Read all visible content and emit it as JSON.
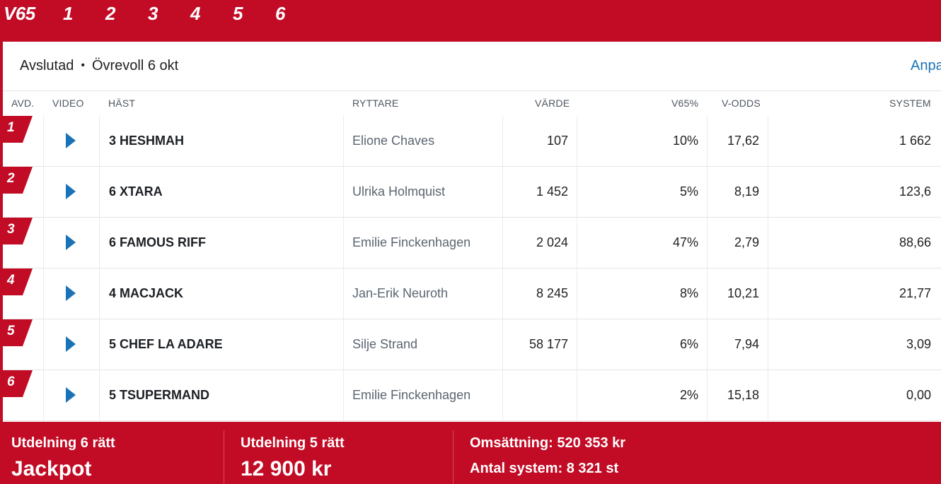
{
  "header": {
    "game": "V65",
    "legs": [
      "1",
      "2",
      "3",
      "4",
      "5",
      "6"
    ]
  },
  "status": {
    "state": "Avslutad",
    "separator": "•",
    "track_date": "Övrevoll 6 okt",
    "adjust_link": "Anpa"
  },
  "table": {
    "columns": {
      "avd": "AVD.",
      "video": "VIDEO",
      "horse": "HÄST",
      "rider": "RYTTARE",
      "value": "VÄRDE",
      "pct": "V65%",
      "odds": "V-ODDS",
      "system": "SYSTEM"
    },
    "rows": [
      {
        "avd": "1",
        "horse": "3 HESHMAH",
        "rider": "Elione Chaves",
        "value": "107",
        "pct": "10%",
        "odds": "17,62",
        "system": "1 662"
      },
      {
        "avd": "2",
        "horse": "6 XTARA",
        "rider": "Ulrika Holmquist",
        "value": "1 452",
        "pct": "5%",
        "odds": "8,19",
        "system": "123,6"
      },
      {
        "avd": "3",
        "horse": "6 FAMOUS RIFF",
        "rider": "Emilie Finckenhagen",
        "value": "2 024",
        "pct": "47%",
        "odds": "2,79",
        "system": "88,66"
      },
      {
        "avd": "4",
        "horse": "4 MACJACK",
        "rider": "Jan-Erik Neuroth",
        "value": "8 245",
        "pct": "8%",
        "odds": "10,21",
        "system": "21,77"
      },
      {
        "avd": "5",
        "horse": "5 CHEF LA ADARE",
        "rider": "Silje Strand",
        "value": "58 177",
        "pct": "6%",
        "odds": "7,94",
        "system": "3,09"
      },
      {
        "avd": "6",
        "horse": "5 TSUPERMAND",
        "rider": "Emilie Finckenhagen",
        "value": "",
        "pct": "2%",
        "odds": "15,18",
        "system": "0,00"
      }
    ]
  },
  "footer": {
    "payout6_label": "Utdelning 6 rätt",
    "payout6_value": "Jackpot",
    "payout5_label": "Utdelning 5 rätt",
    "payout5_value": "12 900 kr",
    "turnover": "Omsättning: 520 353 kr",
    "systems": "Antal system: 8 321 st"
  },
  "colors": {
    "brand_red": "#c20b25",
    "link_blue": "#1a73b7"
  },
  "icons": {
    "video": "play-icon"
  }
}
